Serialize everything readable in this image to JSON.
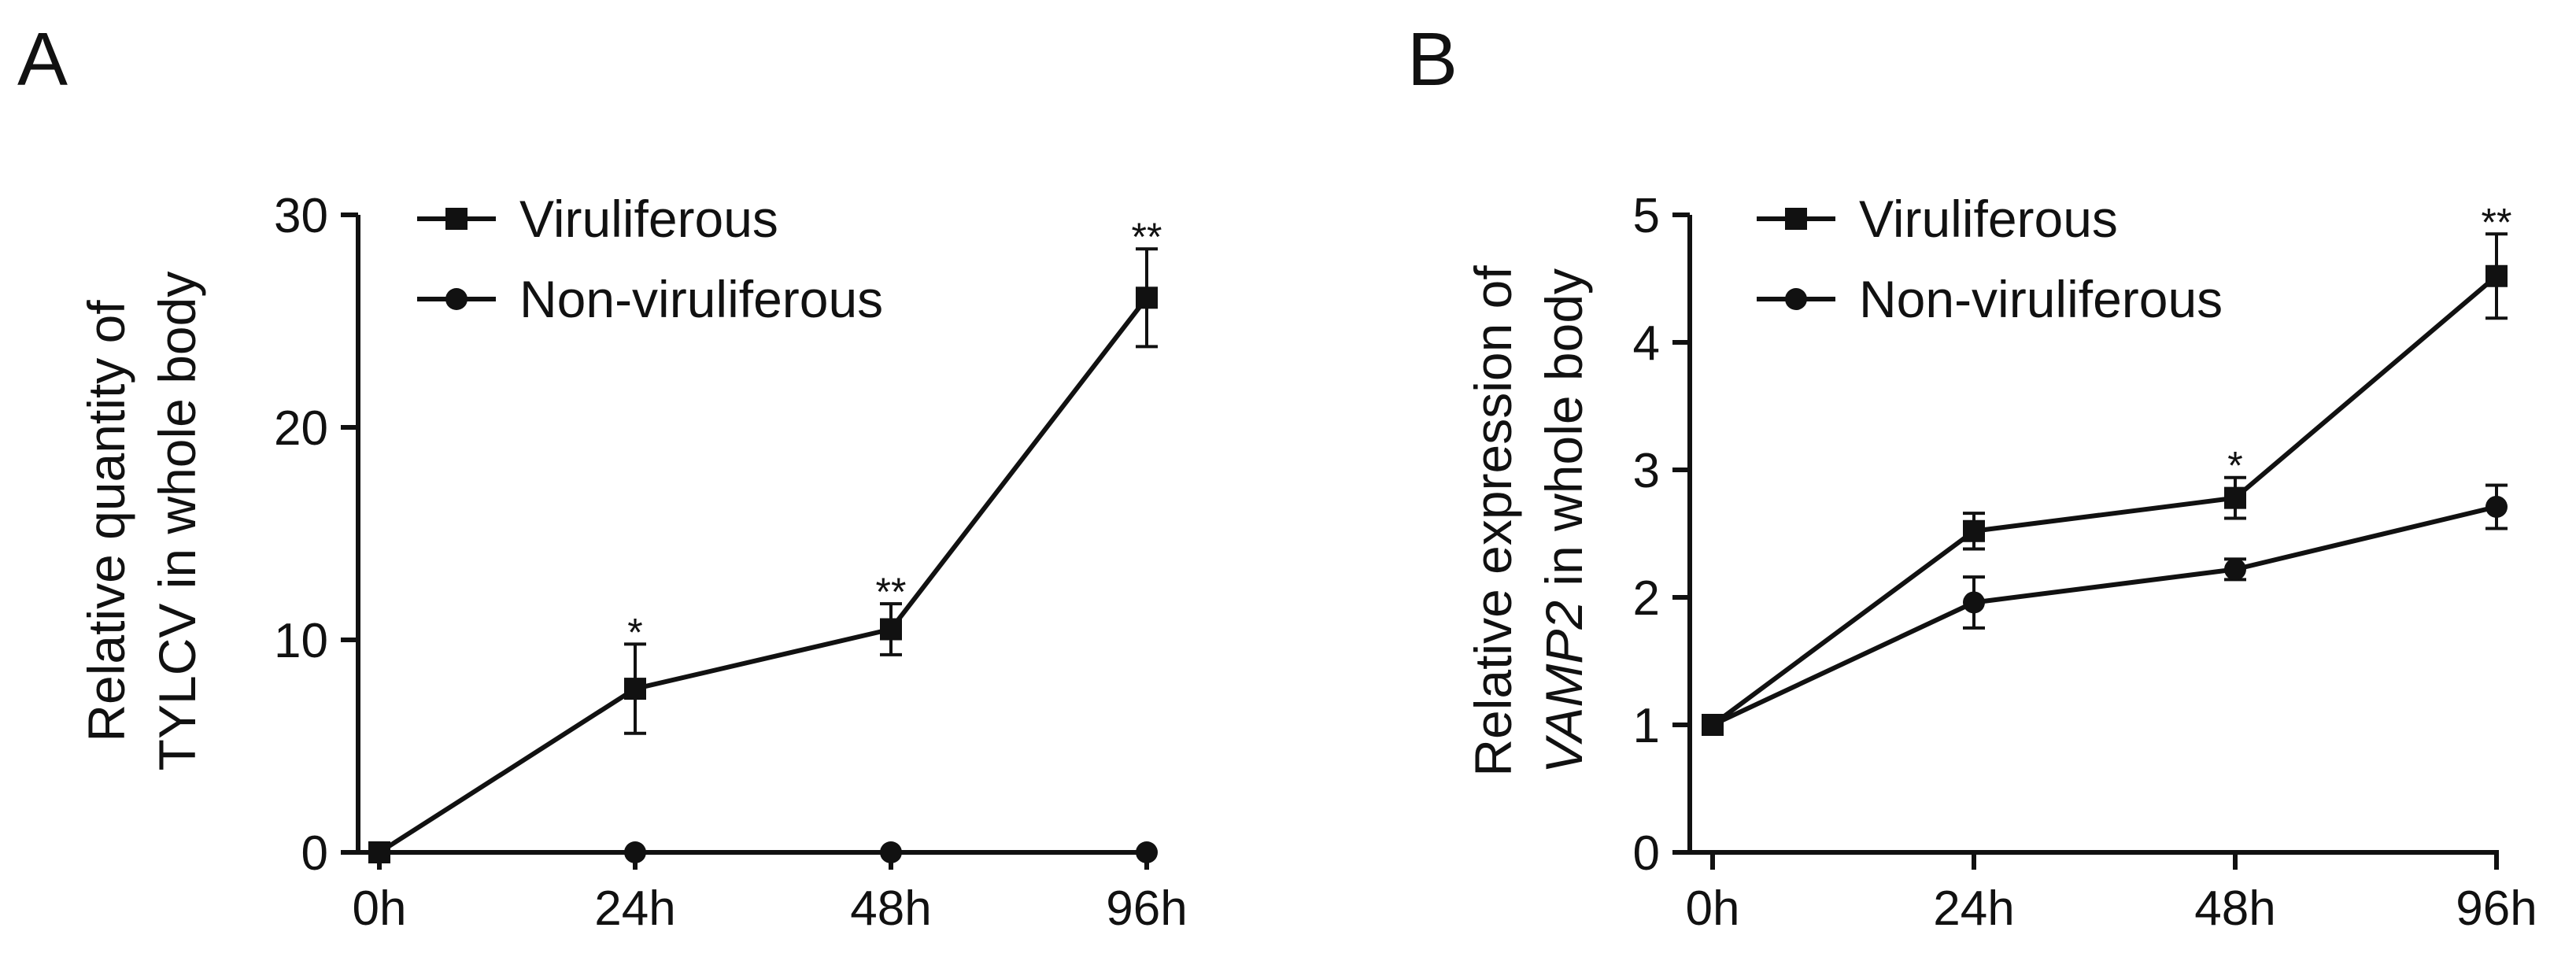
{
  "chart_data": [
    {
      "type": "line",
      "panel_label": "A",
      "categories": [
        "0h",
        "24h",
        "48h",
        "96h"
      ],
      "ylabel_line1": "Relative quantity of",
      "ylabel_line2": "TYLCV in whole body",
      "ylim": [
        0,
        30
      ],
      "yticks": [
        0,
        10,
        20,
        30
      ],
      "ytick_labels": [
        "0",
        "10",
        "20",
        "30"
      ],
      "legend_position": "top-left",
      "series": [
        {
          "name": "Viruliferous",
          "marker": "square",
          "values": [
            0,
            7.7,
            10.5,
            26.1
          ],
          "errors": [
            0,
            2.1,
            1.2,
            2.3
          ]
        },
        {
          "name": "Non-viruliferous",
          "marker": "circle",
          "values": [
            0,
            0,
            0,
            0
          ],
          "errors": [
            0,
            0,
            0,
            0
          ]
        }
      ],
      "significance": [
        "",
        "*",
        "**",
        "**"
      ]
    },
    {
      "type": "line",
      "panel_label": "B",
      "categories": [
        "0h",
        "24h",
        "48h",
        "96h"
      ],
      "ylabel_line1": "Relative expression of",
      "ylabel_line2_italic": "VAMP2",
      "ylabel_line2_rest": " in whole body",
      "ylim": [
        0,
        5
      ],
      "yticks": [
        0,
        1,
        2,
        3,
        4,
        5
      ],
      "ytick_labels": [
        "0",
        "1",
        "2",
        "3",
        "4",
        "5"
      ],
      "legend_position": "top-left",
      "series": [
        {
          "name": "Viruliferous",
          "marker": "square",
          "values": [
            1,
            2.52,
            2.78,
            4.52
          ],
          "errors": [
            0,
            0.14,
            0.16,
            0.33
          ]
        },
        {
          "name": "Non-viruliferous",
          "marker": "circle",
          "values": [
            1,
            1.96,
            2.22,
            2.71
          ],
          "errors": [
            0,
            0.2,
            0.08,
            0.17
          ]
        }
      ],
      "significance": [
        "",
        "",
        "*",
        "**"
      ]
    }
  ]
}
